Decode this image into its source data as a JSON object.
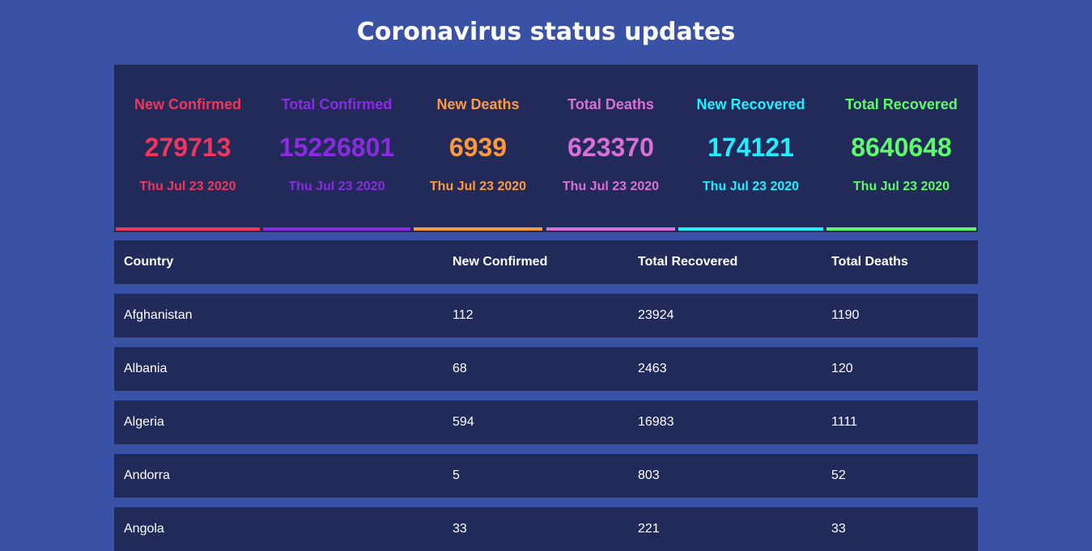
{
  "page": {
    "title": "Coronavirus status updates"
  },
  "stats": [
    {
      "label": "New Confirmed",
      "value": "279713",
      "date": "Thu Jul 23 2020",
      "color": "#f2355b"
    },
    {
      "label": "Total Confirmed",
      "value": "15226801",
      "date": "Thu Jul 23 2020",
      "color": "#8a2be2"
    },
    {
      "label": "New Deaths",
      "value": "6939",
      "date": "Thu Jul 23 2020",
      "color": "#ff9a3c"
    },
    {
      "label": "Total Deaths",
      "value": "623370",
      "date": "Thu Jul 23 2020",
      "color": "#da70d6"
    },
    {
      "label": "New Recovered",
      "value": "174121",
      "date": "Thu Jul 23 2020",
      "color": "#1ef0ff"
    },
    {
      "label": "Total Recovered",
      "value": "8640648",
      "date": "Thu Jul 23 2020",
      "color": "#5dfb6b"
    }
  ],
  "table": {
    "headers": [
      "Country",
      "New Confirmed",
      "Total Recovered",
      "Total Deaths"
    ],
    "rows": [
      [
        "Afghanistan",
        "112",
        "23924",
        "1190"
      ],
      [
        "Albania",
        "68",
        "2463",
        "120"
      ],
      [
        "Algeria",
        "594",
        "16983",
        "1111"
      ],
      [
        "Andorra",
        "5",
        "803",
        "52"
      ],
      [
        "Angola",
        "33",
        "221",
        "33"
      ]
    ]
  }
}
